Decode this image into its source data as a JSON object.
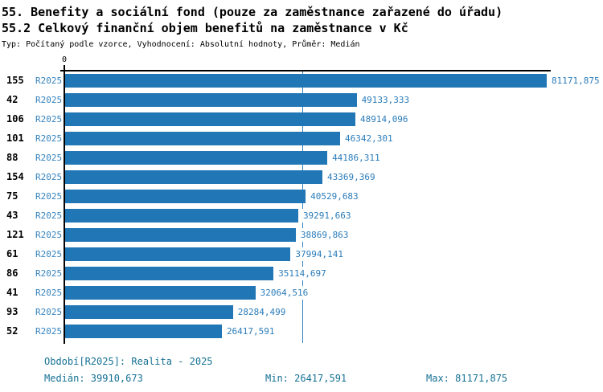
{
  "header": {
    "title_line1": "55. Benefity a sociální fond (pouze za zaměstnance zařazené do úřadu)",
    "title_line2": "55.2 Celkový finanční objem benefitů na zaměstnance v Kč",
    "subtitle": "Typ: Počítaný podle vzorce, Vyhodnocení: Absolutní hodnoty, Průměr: Medián"
  },
  "chart_data": {
    "type": "bar",
    "orientation": "horizontal",
    "title": "55.2 Celkový finanční objem benefitů na zaměstnance v Kč",
    "origin_tick_label": "0",
    "xlim": [
      0,
      81850
    ],
    "grid": false,
    "legend": false,
    "period_label": "R2025",
    "categories": [
      "155",
      "42",
      "106",
      "101",
      "88",
      "154",
      "75",
      "43",
      "121",
      "61",
      "86",
      "41",
      "93",
      "52"
    ],
    "values": [
      81171.875,
      49133.333,
      48914.096,
      46342.301,
      44186.311,
      43369.369,
      40529.683,
      39291.663,
      38869.863,
      37994.141,
      35114.697,
      32064.516,
      28284.499,
      26417.591
    ],
    "value_labels": [
      "81171,875",
      "49133,333",
      "48914,096",
      "46342,301",
      "44186,311",
      "43369,369",
      "40529,683",
      "39291,663",
      "38869,863",
      "37994,141",
      "35114,697",
      "32064,516",
      "28284,499",
      "26417,591"
    ],
    "median": 39910.673,
    "bar_color": "#2176B5",
    "value_label_color": "#2B7CBA",
    "median_line_color": "#2E7FBC"
  },
  "footer": {
    "period_info": "Období[R2025]: Realita - 2025",
    "median_stat": "Medián: 39910,673",
    "min_stat": "Min: 26417,591",
    "max_stat": "Max: 81171,875"
  }
}
